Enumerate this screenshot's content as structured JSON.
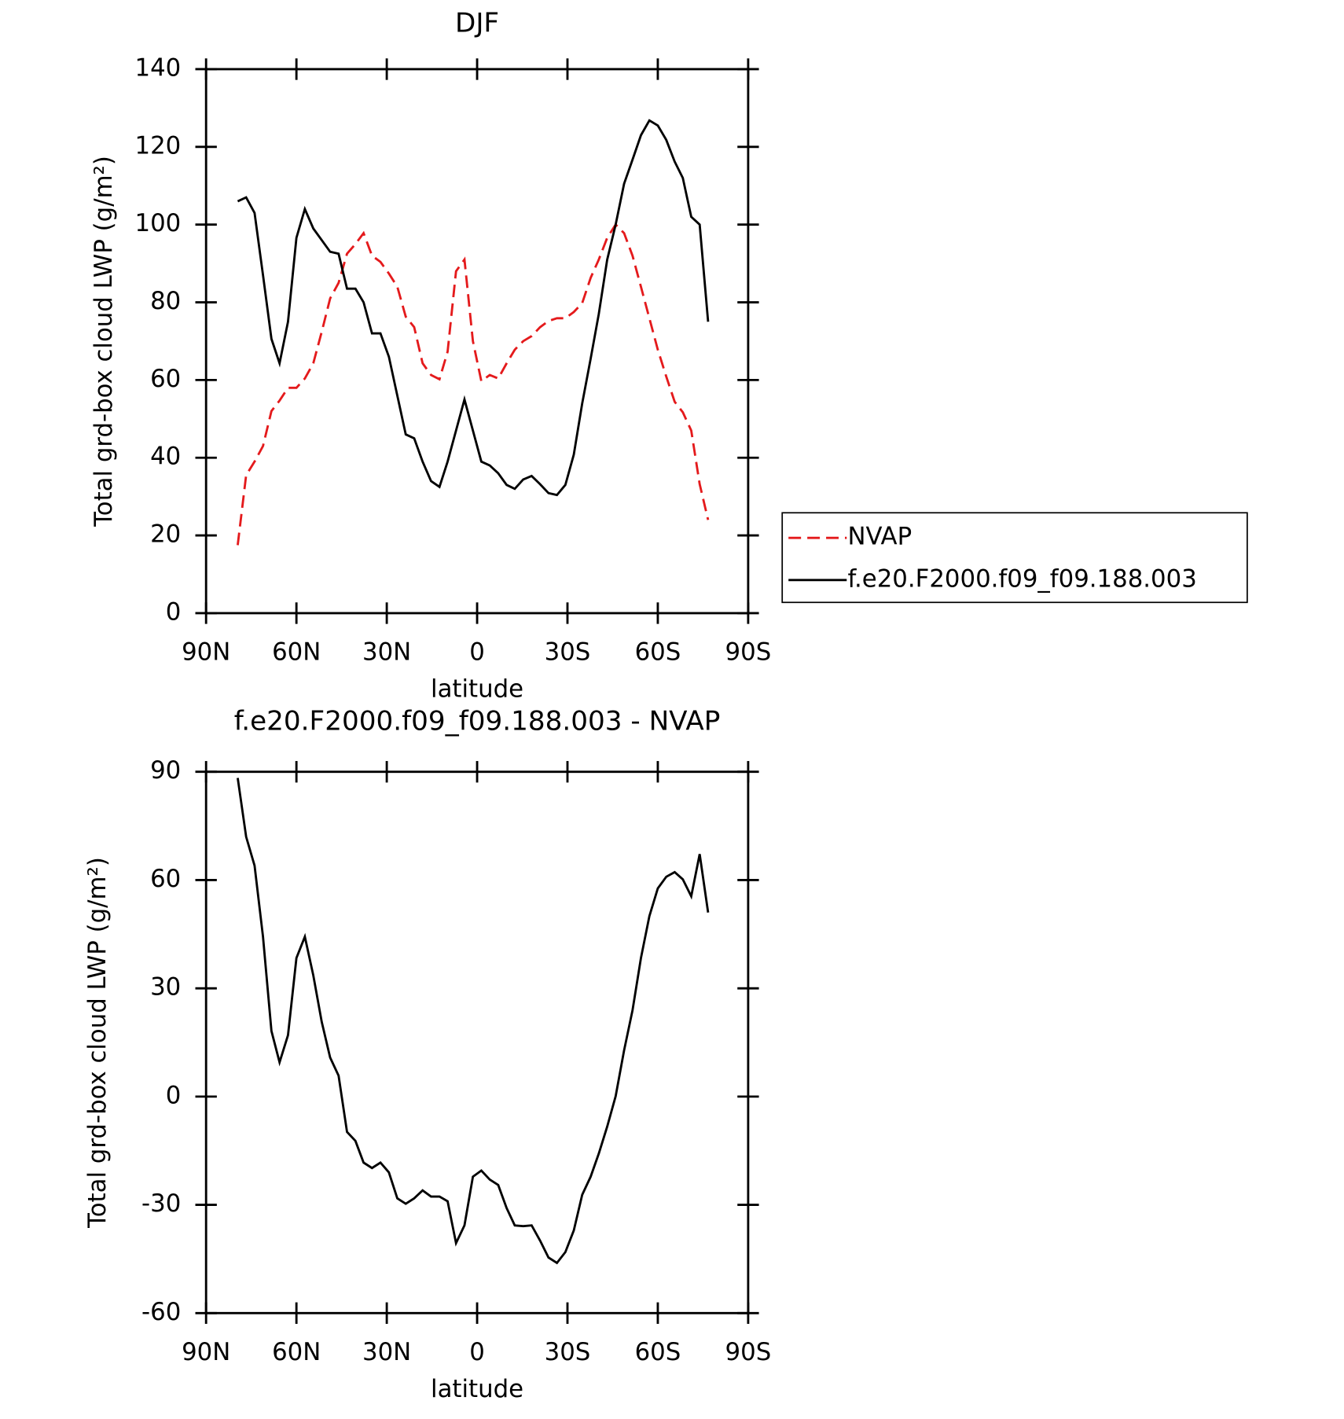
{
  "chart_data": [
    {
      "type": "line",
      "title": "DJF",
      "xlabel": "latitude",
      "ylabel": "Total grd-box cloud LWP (g/m²)",
      "x": [
        79.5,
        76.7,
        73.9,
        71.1,
        68.3,
        65.6,
        62.8,
        60.0,
        57.2,
        54.4,
        51.6,
        48.8,
        46.0,
        43.2,
        40.4,
        37.7,
        34.9,
        32.1,
        29.3,
        26.5,
        23.7,
        20.9,
        18.1,
        15.3,
        12.5,
        9.8,
        7.0,
        4.2,
        1.4,
        -1.4,
        -4.2,
        -7.0,
        -9.8,
        -12.5,
        -15.3,
        -18.1,
        -20.9,
        -23.7,
        -26.5,
        -29.3,
        -32.1,
        -34.9,
        -37.7,
        -40.4,
        -43.2,
        -46.0,
        -48.8,
        -51.6,
        -54.4,
        -57.2,
        -60.0,
        -62.8,
        -65.6,
        -68.3,
        -71.1,
        -73.9,
        -76.7
      ],
      "series": [
        {
          "name": "NVAP",
          "color": "#e41a1c",
          "dashed": true,
          "values": [
            17.5,
            35.5,
            39,
            43,
            52,
            54.7,
            58,
            58,
            60.4,
            64.3,
            72.4,
            81,
            85,
            92.5,
            95,
            97.8,
            92,
            90.4,
            87.4,
            84,
            76.3,
            73.6,
            64.3,
            61.3,
            60.2,
            67.3,
            88,
            91,
            70,
            59.7,
            61.3,
            60.4,
            64.3,
            67.8,
            70,
            71.3,
            73.6,
            75.2,
            75.9,
            75.9,
            77.5,
            79.8,
            86.3,
            91,
            96.6,
            100,
            97.8,
            92,
            84,
            75.9,
            67.8,
            60.9,
            54.4,
            51.7,
            47,
            33.2,
            24
          ]
        },
        {
          "name": "f.e20.F2000.f09_f09.188.003",
          "color": "#000000",
          "dashed": false,
          "values": [
            106,
            107,
            103,
            87,
            70.6,
            64.3,
            75,
            96.6,
            104,
            99,
            96,
            93,
            92.5,
            83.5,
            83.5,
            80,
            72,
            72,
            66,
            56,
            46,
            45,
            39,
            34,
            32.5,
            39,
            47,
            55,
            47,
            39,
            38,
            36,
            33,
            32,
            34.4,
            35.3,
            33.2,
            30.9,
            30.4,
            33,
            40.8,
            54,
            65.5,
            77,
            91,
            100,
            110.5,
            116.7,
            123,
            126.8,
            125.5,
            121.8,
            116.2,
            112,
            102,
            100,
            75
          ]
        }
      ],
      "xlim": [
        90,
        -90
      ],
      "xticks": [
        {
          "value": 90,
          "label": "90N"
        },
        {
          "value": 60,
          "label": "60N"
        },
        {
          "value": 30,
          "label": "30N"
        },
        0,
        {
          "value": -30,
          "label": "30S"
        },
        {
          "value": -60,
          "label": "60S"
        },
        {
          "value": -90,
          "label": "90S"
        }
      ],
      "ylim": [
        0,
        140
      ],
      "yticks": [
        0,
        20,
        40,
        60,
        80,
        100,
        120,
        140
      ],
      "legend": "right"
    },
    {
      "type": "line",
      "title": "f.e20.F2000.f09_f09.188.003 - NVAP",
      "xlabel": "latitude",
      "ylabel": "Total grd-box cloud LWP (g/m²)",
      "x": [
        79.5,
        76.7,
        73.9,
        71.1,
        68.3,
        65.6,
        62.8,
        60.0,
        57.2,
        54.4,
        51.6,
        48.8,
        46.0,
        43.2,
        40.4,
        37.7,
        34.9,
        32.1,
        29.3,
        26.5,
        23.7,
        20.9,
        18.1,
        15.3,
        12.5,
        9.8,
        7.0,
        4.2,
        1.4,
        -1.4,
        -4.2,
        -7.0,
        -9.8,
        -12.5,
        -15.3,
        -18.1,
        -20.9,
        -23.7,
        -26.5,
        -29.3,
        -32.1,
        -34.9,
        -37.7,
        -40.4,
        -43.2,
        -46.0,
        -48.8,
        -51.6,
        -54.4,
        -57.2,
        -60.0,
        -62.8,
        -65.6,
        -68.3,
        -71.1,
        -73.9,
        -76.7
      ],
      "values": [
        88.3,
        72,
        64,
        44.3,
        18.2,
        9.5,
        17,
        38.4,
        44.3,
        33.6,
        20.7,
        10.8,
        5.8,
        -9.8,
        -12.3,
        -18.3,
        -19.8,
        -18.3,
        -21,
        -28.2,
        -29.7,
        -28.2,
        -26,
        -27.7,
        -27.7,
        -29,
        -40.6,
        -35.7,
        -22.2,
        -20.5,
        -23,
        -24.5,
        -30.9,
        -35.7,
        -35.9,
        -35.7,
        -39.9,
        -44.6,
        -46.1,
        -43.1,
        -37.1,
        -27.2,
        -22.2,
        -15.8,
        -8.3,
        0.1,
        12.8,
        23.9,
        38.4,
        50,
        57.7,
        60.9,
        62.2,
        60.2,
        55.5,
        67.2,
        51
      ],
      "color": "#000000",
      "xlim": [
        90,
        -90
      ],
      "xticks": [
        {
          "value": 90,
          "label": "90N"
        },
        {
          "value": 60,
          "label": "60N"
        },
        {
          "value": 30,
          "label": "30N"
        },
        0,
        {
          "value": -30,
          "label": "30S"
        },
        {
          "value": -60,
          "label": "60S"
        },
        {
          "value": -90,
          "label": "90S"
        }
      ],
      "ylim": [
        -60,
        90
      ],
      "yticks": [
        -60,
        -30,
        0,
        30,
        60,
        90
      ]
    }
  ]
}
